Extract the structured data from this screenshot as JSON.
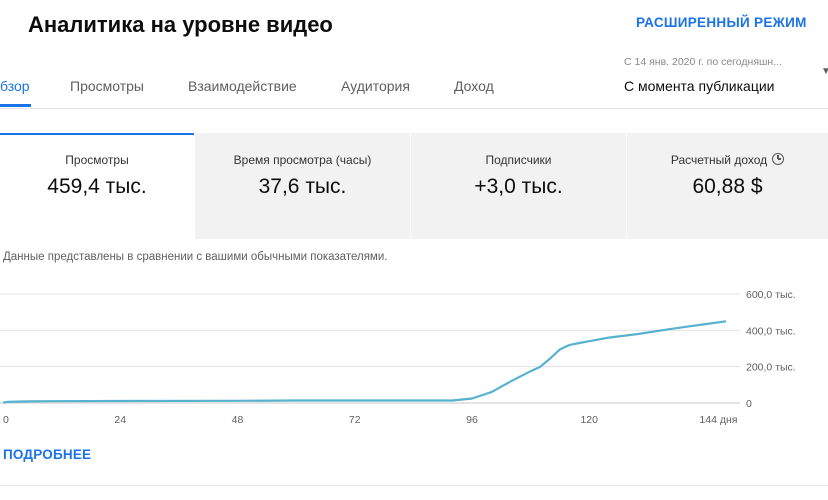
{
  "header": {
    "title": "Аналитика на уровне видео",
    "advanced_mode": "РАСШИРЕННЫЙ РЕЖИМ"
  },
  "tabs": [
    {
      "label": "бзор",
      "active": true
    },
    {
      "label": "Просмотры",
      "active": false
    },
    {
      "label": "Взаимодействие",
      "active": false
    },
    {
      "label": "Аудитория",
      "active": false
    },
    {
      "label": "Доход",
      "active": false
    }
  ],
  "date_filter": {
    "range": "С 14 янв. 2020 г. по сегодняшн...",
    "selected": "С момента публикации"
  },
  "metrics": [
    {
      "label": "Просмотры",
      "value": "459,4 тыс."
    },
    {
      "label": "Время просмотра (часы)",
      "value": "37,6 тыс."
    },
    {
      "label": "Подписчики",
      "value": "+3,0 тыс."
    },
    {
      "label": "Расчетный доход",
      "value": "60,88 $"
    }
  ],
  "note": "Данные представлены в сравнении с вашими обычными показателями.",
  "more_link": "ПОДРОБНЕЕ",
  "colors": {
    "accent": "#1a73e8",
    "line": "#56b2cf"
  },
  "chart_data": {
    "type": "line",
    "series": [
      {
        "x": [
          0,
          1,
          5,
          10,
          24,
          48,
          60,
          72,
          84,
          92,
          96,
          100,
          104,
          108,
          110,
          112,
          114,
          116,
          118,
          120,
          124,
          130,
          136,
          140,
          144,
          148
        ],
        "y": [
          2,
          6,
          9,
          10,
          11,
          12,
          14,
          14,
          14,
          14,
          25,
          60,
          120,
          175,
          200,
          245,
          295,
          320,
          330,
          340,
          360,
          380,
          405,
          420,
          435,
          450
        ]
      }
    ],
    "x_ticks": [
      "0",
      "24",
      "48",
      "72",
      "96",
      "120",
      "144 дня"
    ],
    "x_tick_values": [
      0,
      24,
      48,
      72,
      96,
      120,
      144
    ],
    "y_ticks": [
      "0",
      "200,0 тыс.",
      "400,0 тыс.",
      "600,0 тыс."
    ],
    "y_tick_values": [
      0,
      200,
      400,
      600
    ],
    "xlim": [
      0,
      148
    ],
    "ylim": [
      0,
      600
    ],
    "grid": true
  }
}
